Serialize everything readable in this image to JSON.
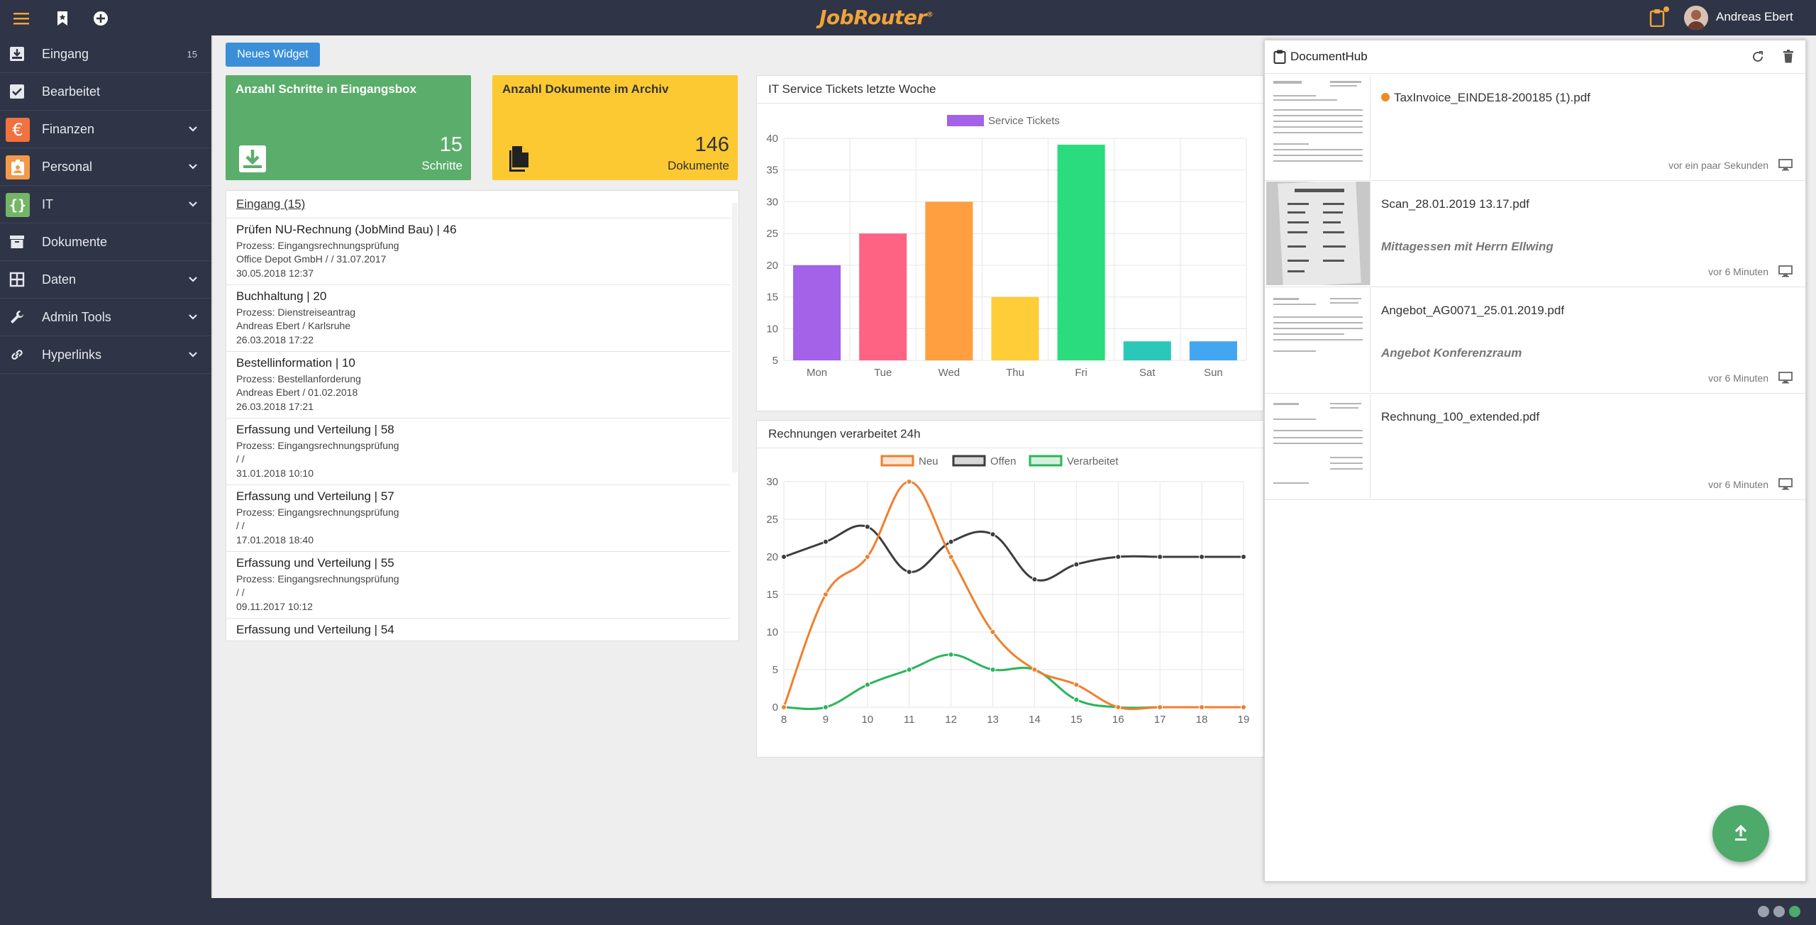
{
  "app": {
    "logo": "JobRouter",
    "logo_mark": "®",
    "user_name": "Andreas Ebert"
  },
  "topbar_icons": [
    "menu-icon",
    "bookmark-icon",
    "add-circle-icon",
    "clipboard-icon"
  ],
  "colors": {
    "sidebar_bg": "#2f3446",
    "accent_blue": "#3a8fd8",
    "tile_green": "#5aad6a",
    "tile_yellow": "#fcc932",
    "finance_orange": "#f07241",
    "personal_orange": "#f39a4a",
    "it_green": "#74b566",
    "fab_green": "#4daa6a",
    "status_orange": "#f08a24"
  },
  "sidebar": {
    "items": [
      {
        "label": "Eingang",
        "count": "15",
        "icon": "inbox-icon"
      },
      {
        "label": "Bearbeitet",
        "icon": "checkbox-icon"
      },
      {
        "label": "Finanzen",
        "icon": "euro-icon",
        "glyph": "€"
      },
      {
        "label": "Personal",
        "icon": "badge-icon"
      },
      {
        "label": "IT",
        "icon": "braces-icon",
        "glyph": "{}"
      },
      {
        "label": "Dokumente",
        "icon": "archive-icon"
      },
      {
        "label": "Daten",
        "icon": "table-icon"
      },
      {
        "label": "Admin Tools",
        "icon": "wrench-icon"
      },
      {
        "label": "Hyperlinks",
        "icon": "link-icon"
      }
    ]
  },
  "main": {
    "new_widget_label": "Neues Widget",
    "tiles": [
      {
        "title": "Anzahl Schritte in Eingangsbox",
        "value": "15",
        "unit": "Schritte",
        "icon": "inbox-download-icon"
      },
      {
        "title": "Anzahl Dokumente im Archiv",
        "value": "146",
        "unit": "Dokumente",
        "icon": "documents-icon"
      }
    ],
    "inbox": {
      "title": "Eingang (15)",
      "items": [
        {
          "title": "Prüfen NU-Rechnung (JobMind Bau) | 46",
          "process": "Prozess: Eingangsrechnungsprüfung",
          "detail": "Office Depot GmbH / / 31.07.2017",
          "date": "30.05.2018 12:37"
        },
        {
          "title": "Buchhaltung | 20",
          "process": "Prozess: Dienstreiseantrag",
          "detail": "Andreas Ebert / Karlsruhe",
          "date": "26.03.2018 17:22"
        },
        {
          "title": "Bestellinformation | 10",
          "process": "Prozess: Bestellanforderung",
          "detail": "Andreas Ebert / 01.02.2018",
          "date": "26.03.2018 17:21"
        },
        {
          "title": "Erfassung und Verteilung | 58",
          "process": "Prozess: Eingangsrechnungsprüfung",
          "detail": "/ /",
          "date": "31.01.2018 10:10"
        },
        {
          "title": "Erfassung und Verteilung | 57",
          "process": "Prozess: Eingangsrechnungsprüfung",
          "detail": "/ /",
          "date": "17.01.2018 18:40"
        },
        {
          "title": "Erfassung und Verteilung | 55",
          "process": "Prozess: Eingangsrechnungsprüfung",
          "detail": "/ /",
          "date": "09.11.2017 10:12"
        },
        {
          "title": "Erfassung und Verteilung | 54",
          "process": "",
          "detail": "",
          "date": ""
        }
      ]
    },
    "bar_panel_title": "IT Service Tickets letzte Woche",
    "line_panel_title": "Rechnungen verarbeitet 24h"
  },
  "chart_data": [
    {
      "type": "bar",
      "title": "IT Service Tickets letzte Woche",
      "categories": [
        "Mon",
        "Tue",
        "Wed",
        "Thu",
        "Fri",
        "Sat",
        "Sun"
      ],
      "series": [
        {
          "name": "Service Tickets",
          "values": [
            20,
            25,
            30,
            15,
            39,
            8,
            8
          ]
        }
      ],
      "bar_colors": [
        "#a362e8",
        "#ff6384",
        "#ff9f40",
        "#ffcd38",
        "#2bdc7e",
        "#2bc8b9",
        "#43a6f0"
      ],
      "legend_color": "#a362e8",
      "ylim": [
        5,
        40
      ],
      "yticks": [
        5,
        10,
        15,
        20,
        25,
        30,
        35,
        40
      ],
      "grid": true,
      "legend": "top"
    },
    {
      "type": "line",
      "title": "Rechnungen verarbeitet 24h",
      "x": [
        8,
        9,
        10,
        11,
        12,
        13,
        14,
        15,
        16,
        17,
        18,
        19
      ],
      "series": [
        {
          "name": "Neu",
          "color": "#f07f2e",
          "values": [
            0,
            15,
            20,
            30,
            20,
            10,
            5,
            3,
            0,
            0,
            0,
            0
          ]
        },
        {
          "name": "Offen",
          "color": "#3d3d3d",
          "values": [
            20,
            22,
            24,
            18,
            22,
            23,
            17,
            19,
            20,
            20,
            20,
            20
          ]
        },
        {
          "name": "Verarbeitet",
          "color": "#2bb55a",
          "values": [
            0,
            0,
            3,
            5,
            7,
            5,
            5,
            1,
            0,
            0,
            0,
            0
          ]
        }
      ],
      "ylim": [
        0,
        30
      ],
      "yticks": [
        0,
        5,
        10,
        15,
        20,
        25,
        30
      ],
      "grid": true,
      "legend": "top"
    }
  ],
  "dochub": {
    "title": "DocumentHub",
    "items": [
      {
        "name": "TaxInvoice_EINDE18-200185 (1).pdf",
        "note": "",
        "time": "vor ein paar Sekunden",
        "new": true
      },
      {
        "name": "Scan_28.01.2019 13.17.pdf",
        "note": "Mittagessen mit Herrn Ellwing",
        "time": "vor 6 Minuten",
        "new": false
      },
      {
        "name": "Angebot_AG0071_25.01.2019.pdf",
        "note": "Angebot Konferenzraum",
        "time": "vor 6 Minuten",
        "new": false
      },
      {
        "name": "Rechnung_100_extended.pdf",
        "note": "",
        "time": "vor 6 Minuten",
        "new": false
      }
    ]
  }
}
